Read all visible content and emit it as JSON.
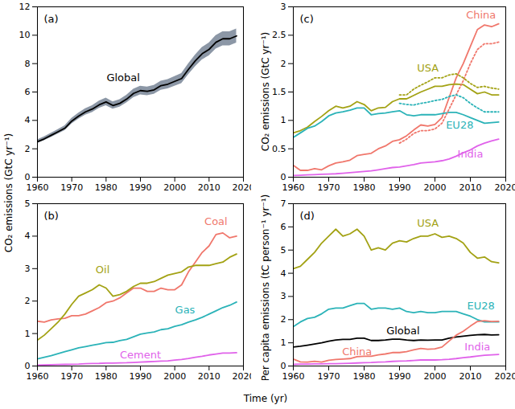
{
  "chart_data": [
    {
      "type": "line",
      "title": "(a)",
      "ylabel": "CO₂ emissions (GtC yr⁻¹)",
      "x": [
        1960,
        1962,
        1964,
        1966,
        1968,
        1970,
        1972,
        1974,
        1976,
        1978,
        1980,
        1982,
        1984,
        1986,
        1988,
        1990,
        1992,
        1994,
        1996,
        1998,
        2000,
        2002,
        2004,
        2006,
        2008,
        2010,
        2012,
        2014,
        2016,
        2018
      ],
      "xlim": [
        1960,
        2020
      ],
      "xticks": [
        1960,
        1970,
        1980,
        1990,
        2000,
        2010,
        2020
      ],
      "ylim": [
        0,
        12
      ],
      "yticks": [
        0,
        2,
        4,
        6,
        8,
        10,
        12
      ],
      "series": [
        {
          "name": "Global",
          "color": "#000000",
          "values": [
            2.5,
            2.7,
            2.95,
            3.2,
            3.45,
            3.95,
            4.3,
            4.6,
            4.8,
            5.1,
            5.3,
            5.05,
            5.2,
            5.5,
            5.9,
            6.1,
            6.05,
            6.15,
            6.45,
            6.55,
            6.75,
            6.95,
            7.6,
            8.2,
            8.7,
            9.0,
            9.5,
            9.75,
            9.75,
            9.95
          ],
          "lower": [
            2.38,
            2.57,
            2.8,
            3.04,
            3.28,
            3.75,
            4.09,
            4.37,
            4.56,
            4.85,
            5.04,
            4.8,
            4.94,
            5.23,
            5.61,
            5.8,
            5.75,
            5.84,
            6.13,
            6.22,
            6.41,
            6.6,
            7.22,
            7.79,
            8.27,
            8.55,
            9.03,
            9.26,
            9.26,
            9.45
          ],
          "upper": [
            2.63,
            2.84,
            3.1,
            3.36,
            3.62,
            4.15,
            4.52,
            4.83,
            5.04,
            5.36,
            5.57,
            5.3,
            5.46,
            5.78,
            6.2,
            6.41,
            6.35,
            6.46,
            6.77,
            6.88,
            7.09,
            7.3,
            7.98,
            8.61,
            9.14,
            9.45,
            9.98,
            10.24,
            10.24,
            10.45
          ]
        }
      ]
    },
    {
      "type": "line",
      "title": "(b)",
      "x": [
        1960,
        1962,
        1964,
        1966,
        1968,
        1970,
        1972,
        1974,
        1976,
        1978,
        1980,
        1982,
        1984,
        1986,
        1988,
        1990,
        1992,
        1994,
        1996,
        1998,
        2000,
        2002,
        2004,
        2006,
        2008,
        2010,
        2012,
        2014,
        2016,
        2018
      ],
      "xlim": [
        1960,
        2020
      ],
      "xticks": [
        1960,
        1970,
        1980,
        1990,
        2000,
        2010,
        2020
      ],
      "ylim": [
        0,
        5
      ],
      "yticks": [
        0,
        1,
        2,
        3,
        4,
        5
      ],
      "series": [
        {
          "name": "Coal",
          "color": "#f0776c",
          "values": [
            1.38,
            1.35,
            1.42,
            1.45,
            1.47,
            1.55,
            1.55,
            1.6,
            1.7,
            1.8,
            1.95,
            2.0,
            2.1,
            2.25,
            2.4,
            2.4,
            2.3,
            2.3,
            2.4,
            2.35,
            2.35,
            2.5,
            2.9,
            3.2,
            3.5,
            3.7,
            4.05,
            4.1,
            3.95,
            4.0
          ]
        },
        {
          "name": "Oil",
          "color": "#a3a214",
          "values": [
            0.8,
            0.95,
            1.15,
            1.35,
            1.6,
            1.9,
            2.15,
            2.25,
            2.35,
            2.5,
            2.4,
            2.15,
            2.2,
            2.3,
            2.45,
            2.55,
            2.55,
            2.6,
            2.7,
            2.8,
            2.85,
            2.9,
            3.05,
            3.1,
            3.1,
            3.1,
            3.15,
            3.2,
            3.35,
            3.45
          ]
        },
        {
          "name": "Gas",
          "color": "#2bb3b8",
          "values": [
            0.22,
            0.27,
            0.32,
            0.38,
            0.44,
            0.5,
            0.56,
            0.6,
            0.64,
            0.68,
            0.72,
            0.73,
            0.78,
            0.82,
            0.9,
            0.98,
            1.02,
            1.05,
            1.12,
            1.15,
            1.22,
            1.27,
            1.35,
            1.42,
            1.5,
            1.6,
            1.7,
            1.8,
            1.87,
            1.97
          ]
        },
        {
          "name": "Cement",
          "color": "#e062ea",
          "values": [
            0.03,
            0.035,
            0.04,
            0.045,
            0.05,
            0.055,
            0.06,
            0.07,
            0.075,
            0.08,
            0.09,
            0.09,
            0.095,
            0.1,
            0.11,
            0.12,
            0.13,
            0.14,
            0.15,
            0.16,
            0.18,
            0.2,
            0.23,
            0.27,
            0.3,
            0.34,
            0.37,
            0.4,
            0.4,
            0.41
          ]
        }
      ]
    },
    {
      "type": "line",
      "title": "(c)",
      "ylabel": "CO₂ emissions (GtC yr⁻¹)",
      "x": [
        1960,
        1962,
        1964,
        1966,
        1968,
        1970,
        1972,
        1974,
        1976,
        1978,
        1980,
        1982,
        1984,
        1986,
        1988,
        1990,
        1992,
        1994,
        1996,
        1998,
        2000,
        2002,
        2004,
        2006,
        2008,
        2010,
        2012,
        2014,
        2016,
        2018
      ],
      "xlim": [
        1960,
        2020
      ],
      "xticks": [
        1960,
        1970,
        1980,
        1990,
        2000,
        2010,
        2020
      ],
      "ylim": [
        0,
        3
      ],
      "yticks": [
        0,
        0.5,
        1,
        1.5,
        2,
        2.5,
        3
      ],
      "series": [
        {
          "name": "China",
          "color": "#f0776c",
          "values": [
            0.21,
            0.12,
            0.12,
            0.15,
            0.13,
            0.2,
            0.25,
            0.27,
            0.3,
            0.38,
            0.4,
            0.42,
            0.5,
            0.55,
            0.63,
            0.66,
            0.73,
            0.83,
            0.92,
            0.9,
            0.93,
            1.05,
            1.4,
            1.75,
            2.0,
            2.3,
            2.6,
            2.68,
            2.65,
            2.7
          ]
        },
        {
          "name": "USA",
          "color": "#a3a214",
          "values": [
            0.78,
            0.82,
            0.88,
            0.98,
            1.07,
            1.17,
            1.25,
            1.22,
            1.25,
            1.33,
            1.28,
            1.17,
            1.22,
            1.23,
            1.33,
            1.38,
            1.38,
            1.44,
            1.5,
            1.55,
            1.6,
            1.6,
            1.63,
            1.64,
            1.63,
            1.55,
            1.47,
            1.5,
            1.45,
            1.45
          ]
        },
        {
          "name": "EU28",
          "color": "#2bb3b8",
          "values": [
            0.7,
            0.78,
            0.86,
            0.9,
            0.98,
            1.08,
            1.13,
            1.15,
            1.18,
            1.22,
            1.22,
            1.1,
            1.12,
            1.13,
            1.15,
            1.17,
            1.1,
            1.08,
            1.1,
            1.1,
            1.1,
            1.12,
            1.14,
            1.14,
            1.1,
            1.05,
            1.0,
            0.95,
            0.96,
            0.97
          ]
        },
        {
          "name": "India",
          "color": "#e062ea",
          "values": [
            0.03,
            0.035,
            0.04,
            0.045,
            0.05,
            0.055,
            0.06,
            0.07,
            0.08,
            0.09,
            0.1,
            0.11,
            0.13,
            0.15,
            0.17,
            0.18,
            0.2,
            0.22,
            0.25,
            0.26,
            0.27,
            0.29,
            0.32,
            0.37,
            0.43,
            0.48,
            0.55,
            0.6,
            0.64,
            0.67
          ]
        },
        {
          "color": "#f0776c",
          "line_style": "dotted",
          "values": [
            null,
            null,
            null,
            null,
            null,
            null,
            null,
            null,
            null,
            null,
            null,
            null,
            null,
            null,
            null,
            0.6,
            0.67,
            0.77,
            0.82,
            0.82,
            0.85,
            0.95,
            1.2,
            1.45,
            1.7,
            2.0,
            2.25,
            2.35,
            2.35,
            2.38
          ]
        },
        {
          "color": "#a3a214",
          "line_style": "dotted",
          "values": [
            null,
            null,
            null,
            null,
            null,
            null,
            null,
            null,
            null,
            null,
            null,
            null,
            null,
            null,
            null,
            1.45,
            1.45,
            1.55,
            1.62,
            1.68,
            1.75,
            1.75,
            1.8,
            1.82,
            1.75,
            1.65,
            1.58,
            1.6,
            1.57,
            1.55
          ]
        },
        {
          "color": "#2bb3b8",
          "line_style": "dotted",
          "values": [
            null,
            null,
            null,
            null,
            null,
            null,
            null,
            null,
            null,
            null,
            null,
            null,
            null,
            null,
            null,
            1.3,
            1.28,
            1.27,
            1.3,
            1.32,
            1.35,
            1.37,
            1.42,
            1.45,
            1.4,
            1.3,
            1.22,
            1.15,
            1.15,
            1.15
          ]
        }
      ]
    },
    {
      "type": "line",
      "title": "(d)",
      "ylabel": "Per capita emissions (tC person⁻¹ yr⁻¹)",
      "xlabel": "Time (yr)",
      "x": [
        1960,
        1962,
        1964,
        1966,
        1968,
        1970,
        1972,
        1974,
        1976,
        1978,
        1980,
        1982,
        1984,
        1986,
        1988,
        1990,
        1992,
        1994,
        1996,
        1998,
        2000,
        2002,
        2004,
        2006,
        2008,
        2010,
        2012,
        2014,
        2016,
        2018
      ],
      "xlim": [
        1960,
        2020
      ],
      "xticks": [
        1960,
        1970,
        1980,
        1990,
        2000,
        2010,
        2020
      ],
      "ylim": [
        0,
        7
      ],
      "yticks": [
        0,
        1,
        2,
        3,
        4,
        5,
        6,
        7
      ],
      "series": [
        {
          "name": "USA",
          "color": "#a3a214",
          "values": [
            4.2,
            4.3,
            4.6,
            4.9,
            5.3,
            5.6,
            5.9,
            5.6,
            5.7,
            5.9,
            5.6,
            5.0,
            5.1,
            5.0,
            5.3,
            5.4,
            5.35,
            5.5,
            5.6,
            5.6,
            5.7,
            5.55,
            5.6,
            5.5,
            5.3,
            4.9,
            4.65,
            4.7,
            4.5,
            4.45
          ]
        },
        {
          "name": "EU28",
          "color": "#2bb3b8",
          "values": [
            1.7,
            1.9,
            2.05,
            2.1,
            2.25,
            2.45,
            2.5,
            2.5,
            2.6,
            2.7,
            2.7,
            2.45,
            2.5,
            2.5,
            2.45,
            2.5,
            2.35,
            2.3,
            2.35,
            2.3,
            2.3,
            2.35,
            2.35,
            2.35,
            2.25,
            2.15,
            2.0,
            1.9,
            1.9,
            1.9
          ]
        },
        {
          "name": "Global",
          "color": "#000000",
          "values": [
            0.82,
            0.85,
            0.9,
            0.95,
            1.0,
            1.07,
            1.12,
            1.15,
            1.15,
            1.2,
            1.2,
            1.1,
            1.1,
            1.12,
            1.16,
            1.16,
            1.12,
            1.1,
            1.12,
            1.11,
            1.12,
            1.12,
            1.2,
            1.25,
            1.29,
            1.32,
            1.35,
            1.36,
            1.34,
            1.35
          ]
        },
        {
          "name": "China",
          "color": "#f0776c",
          "values": [
            0.3,
            0.18,
            0.17,
            0.2,
            0.17,
            0.25,
            0.28,
            0.3,
            0.32,
            0.4,
            0.42,
            0.42,
            0.48,
            0.52,
            0.58,
            0.58,
            0.62,
            0.7,
            0.76,
            0.72,
            0.74,
            0.82,
            1.08,
            1.33,
            1.5,
            1.72,
            1.92,
            1.95,
            1.92,
            1.93
          ]
        },
        {
          "name": "India",
          "color": "#e062ea",
          "values": [
            0.07,
            0.08,
            0.08,
            0.09,
            0.09,
            0.1,
            0.1,
            0.11,
            0.12,
            0.13,
            0.14,
            0.15,
            0.17,
            0.18,
            0.2,
            0.21,
            0.22,
            0.24,
            0.26,
            0.26,
            0.26,
            0.27,
            0.29,
            0.32,
            0.36,
            0.39,
            0.43,
            0.46,
            0.48,
            0.5
          ]
        }
      ]
    }
  ]
}
